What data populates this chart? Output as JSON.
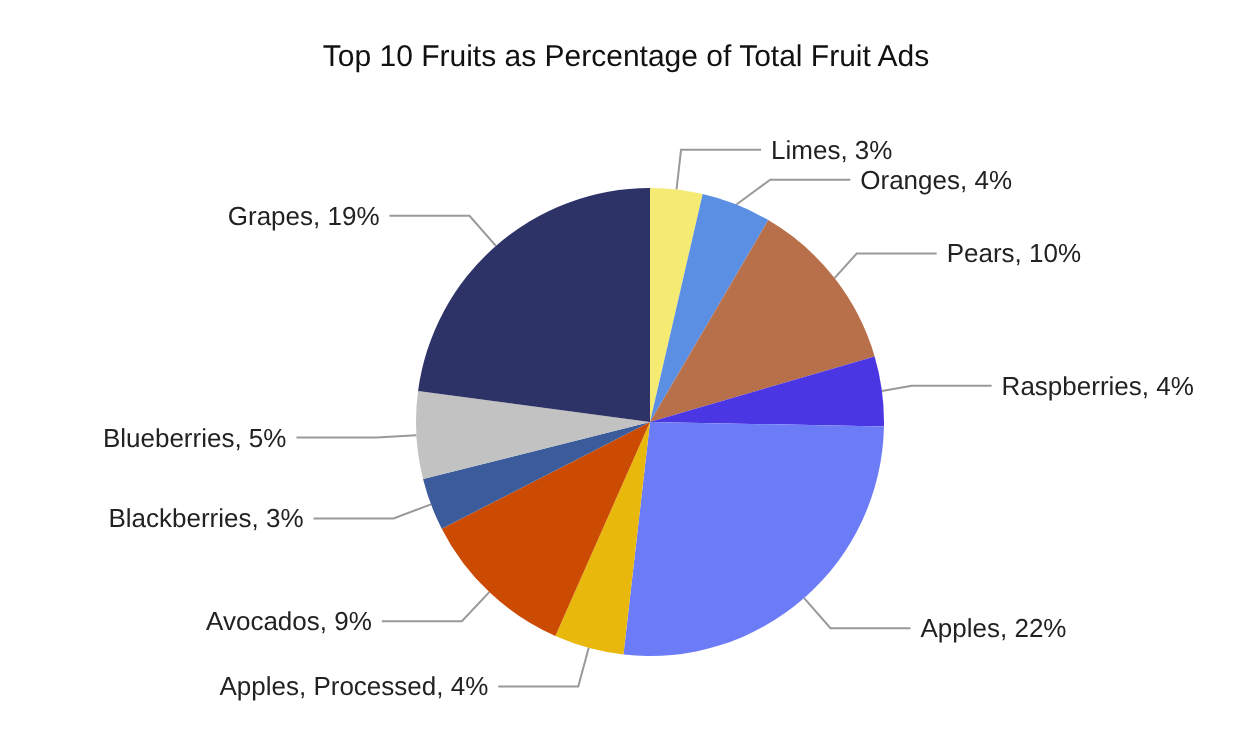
{
  "chart_data": {
    "type": "pie",
    "title": "Top 10 Fruits as Percentage of Total Fruit Ads",
    "categories": [
      "Limes",
      "Oranges",
      "Pears",
      "Raspberries",
      "Apples",
      "Apples, Processed",
      "Avocados",
      "Blackberries",
      "Blueberries",
      "Grapes"
    ],
    "values": [
      3,
      4,
      10,
      4,
      22,
      4,
      9,
      3,
      5,
      19
    ],
    "value_labels": [
      "3%",
      "4%",
      "10%",
      "4%",
      "22%",
      "4%",
      "9%",
      "3%",
      "5%",
      "19%"
    ],
    "colors": [
      "#f5ea72",
      "#5b8fe3",
      "#b8704a",
      "#4b36e3",
      "#6c7cf6",
      "#e8b90c",
      "#cc4b02",
      "#3b5b9b",
      "#c2c2c2",
      "#2e3367"
    ],
    "legend": false
  }
}
